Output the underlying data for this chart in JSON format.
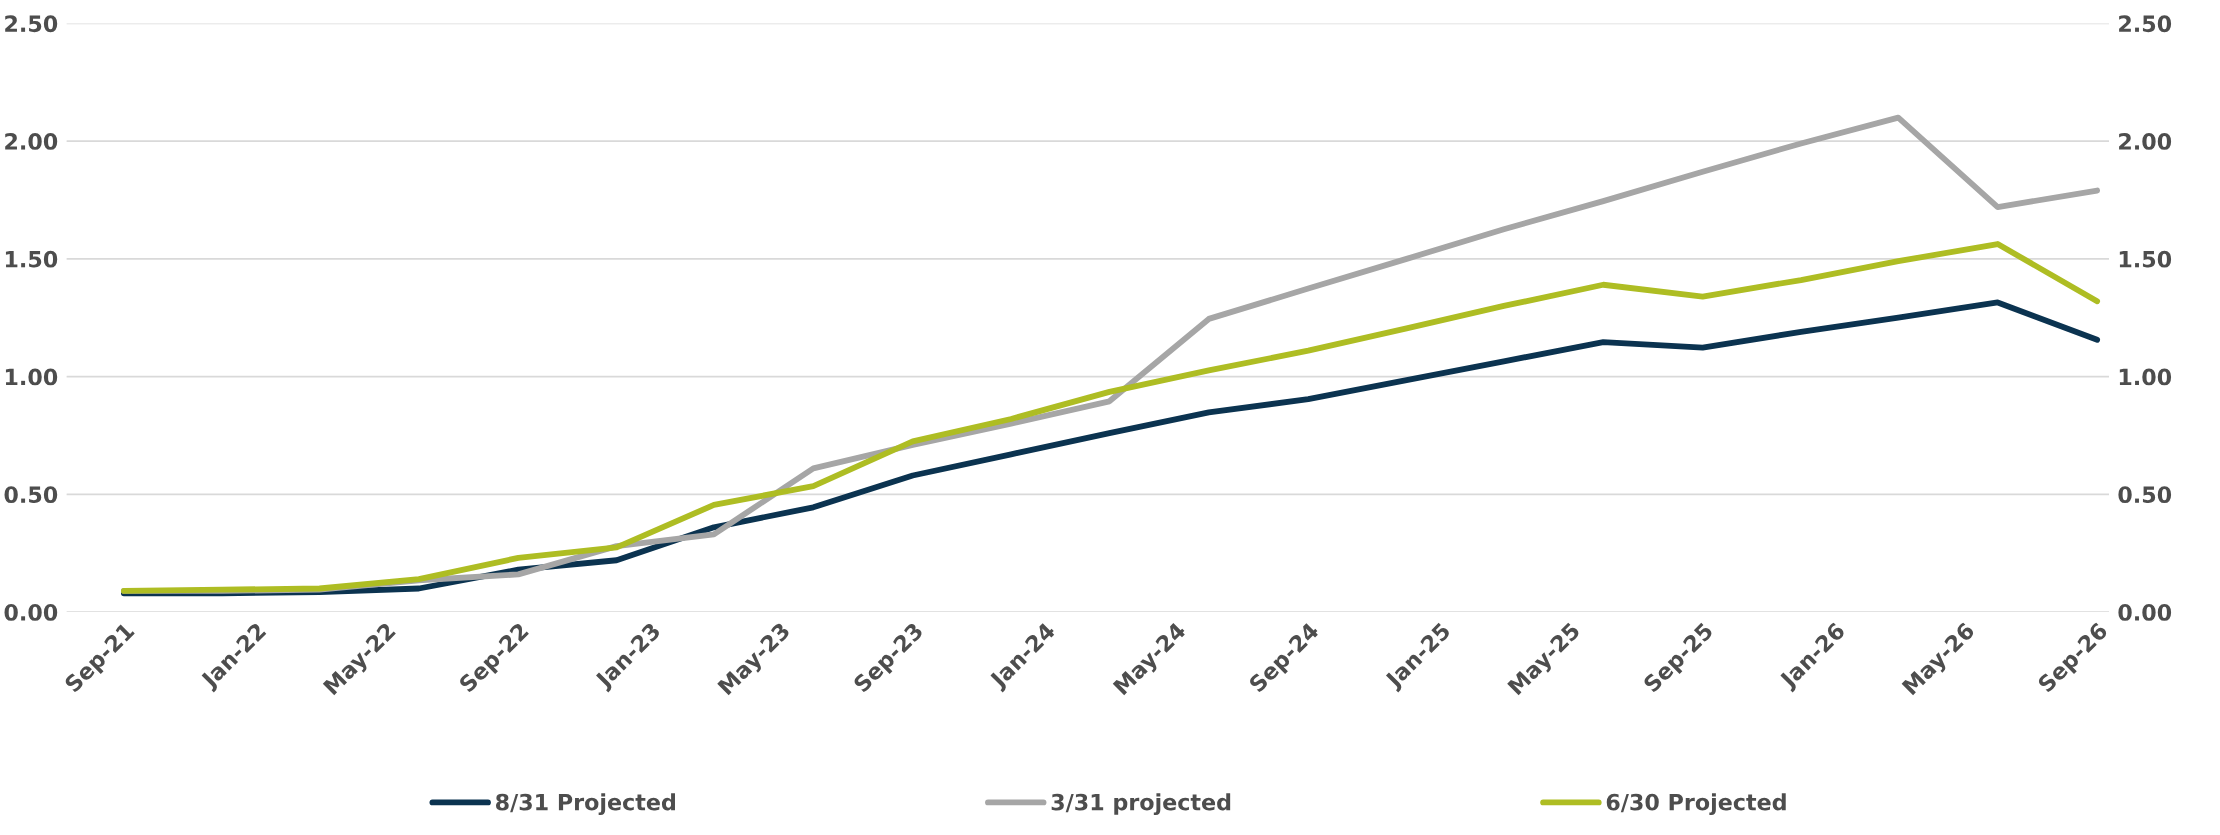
{
  "chart_data": {
    "type": "line",
    "x": [
      "2021-09",
      "2021-12",
      "2022-03",
      "2022-06",
      "2022-09",
      "2022-12",
      "2023-03",
      "2023-06",
      "2023-09",
      "2023-12",
      "2024-03",
      "2024-06",
      "2024-09",
      "2024-12",
      "2025-03",
      "2025-06",
      "2025-09",
      "2025-12",
      "2026-03",
      "2026-06",
      "2026-09"
    ],
    "series": [
      {
        "name": "8/31 Projected",
        "color": "#0b3350",
        "values": [
          0.08,
          0.08,
          0.085,
          0.1,
          0.18,
          0.22,
          0.36,
          0.445,
          0.58,
          0.67,
          0.76,
          0.848,
          0.904,
          0.985,
          1.065,
          1.146,
          1.123,
          1.19,
          1.25,
          1.315,
          1.156
        ]
      },
      {
        "name": "3/31 projected",
        "color": "#a6a6a6",
        "values": [
          0.09,
          0.09,
          0.095,
          0.135,
          0.16,
          0.28,
          0.33,
          0.61,
          0.71,
          0.8,
          0.895,
          1.245,
          1.374,
          1.5,
          1.626,
          1.745,
          1.87,
          1.99,
          2.1,
          1.72,
          1.79
        ]
      },
      {
        "name": "6/30 Projected",
        "color": "#aebd23",
        "values": [
          0.09,
          0.095,
          0.1,
          0.14,
          0.23,
          0.275,
          0.455,
          0.535,
          0.725,
          0.82,
          0.935,
          1.026,
          1.11,
          1.205,
          1.3,
          1.39,
          1.34,
          1.41,
          1.49,
          1.563,
          1.32
        ]
      }
    ],
    "xlim": [
      "2021-07-10",
      "2026-09-12"
    ],
    "xticks": [
      {
        "value": "2021-09",
        "label": "Sep-21"
      },
      {
        "value": "2022-01",
        "label": "Jan-22"
      },
      {
        "value": "2022-05",
        "label": "May-22"
      },
      {
        "value": "2022-09",
        "label": "Sep-22"
      },
      {
        "value": "2023-01",
        "label": "Jan-23"
      },
      {
        "value": "2023-05",
        "label": "May-23"
      },
      {
        "value": "2023-09",
        "label": "Sep-23"
      },
      {
        "value": "2024-01",
        "label": "Jan-24"
      },
      {
        "value": "2024-05",
        "label": "May-24"
      },
      {
        "value": "2024-09",
        "label": "Sep-24"
      },
      {
        "value": "2025-01",
        "label": "Jan-25"
      },
      {
        "value": "2025-05",
        "label": "May-25"
      },
      {
        "value": "2025-09",
        "label": "Sep-25"
      },
      {
        "value": "2026-01",
        "label": "Jan-26"
      },
      {
        "value": "2026-05",
        "label": "May-26"
      },
      {
        "value": "2026-09",
        "label": "Sep-26"
      }
    ],
    "ylim": [
      0,
      2.5
    ],
    "yticks": [
      {
        "value": 0,
        "label": "0.00"
      },
      {
        "value": 0.5,
        "label": "0.50"
      },
      {
        "value": 1,
        "label": "1.00"
      },
      {
        "value": 1.5,
        "label": "1.50"
      },
      {
        "value": 2,
        "label": "2.00"
      },
      {
        "value": 2.5,
        "label": "2.50"
      }
    ],
    "y2lim": [
      0,
      2.5
    ],
    "y2ticks": [
      {
        "value": 0,
        "label": "0.00"
      },
      {
        "value": 0.5,
        "label": "0.50"
      },
      {
        "value": 1,
        "label": "1.00"
      },
      {
        "value": 1.5,
        "label": "1.50"
      },
      {
        "value": 2,
        "label": "2.00"
      },
      {
        "value": 2.5,
        "label": "2.50"
      }
    ],
    "grid": "y",
    "legend": "bottom",
    "marker": "none",
    "line_style": "solid"
  }
}
